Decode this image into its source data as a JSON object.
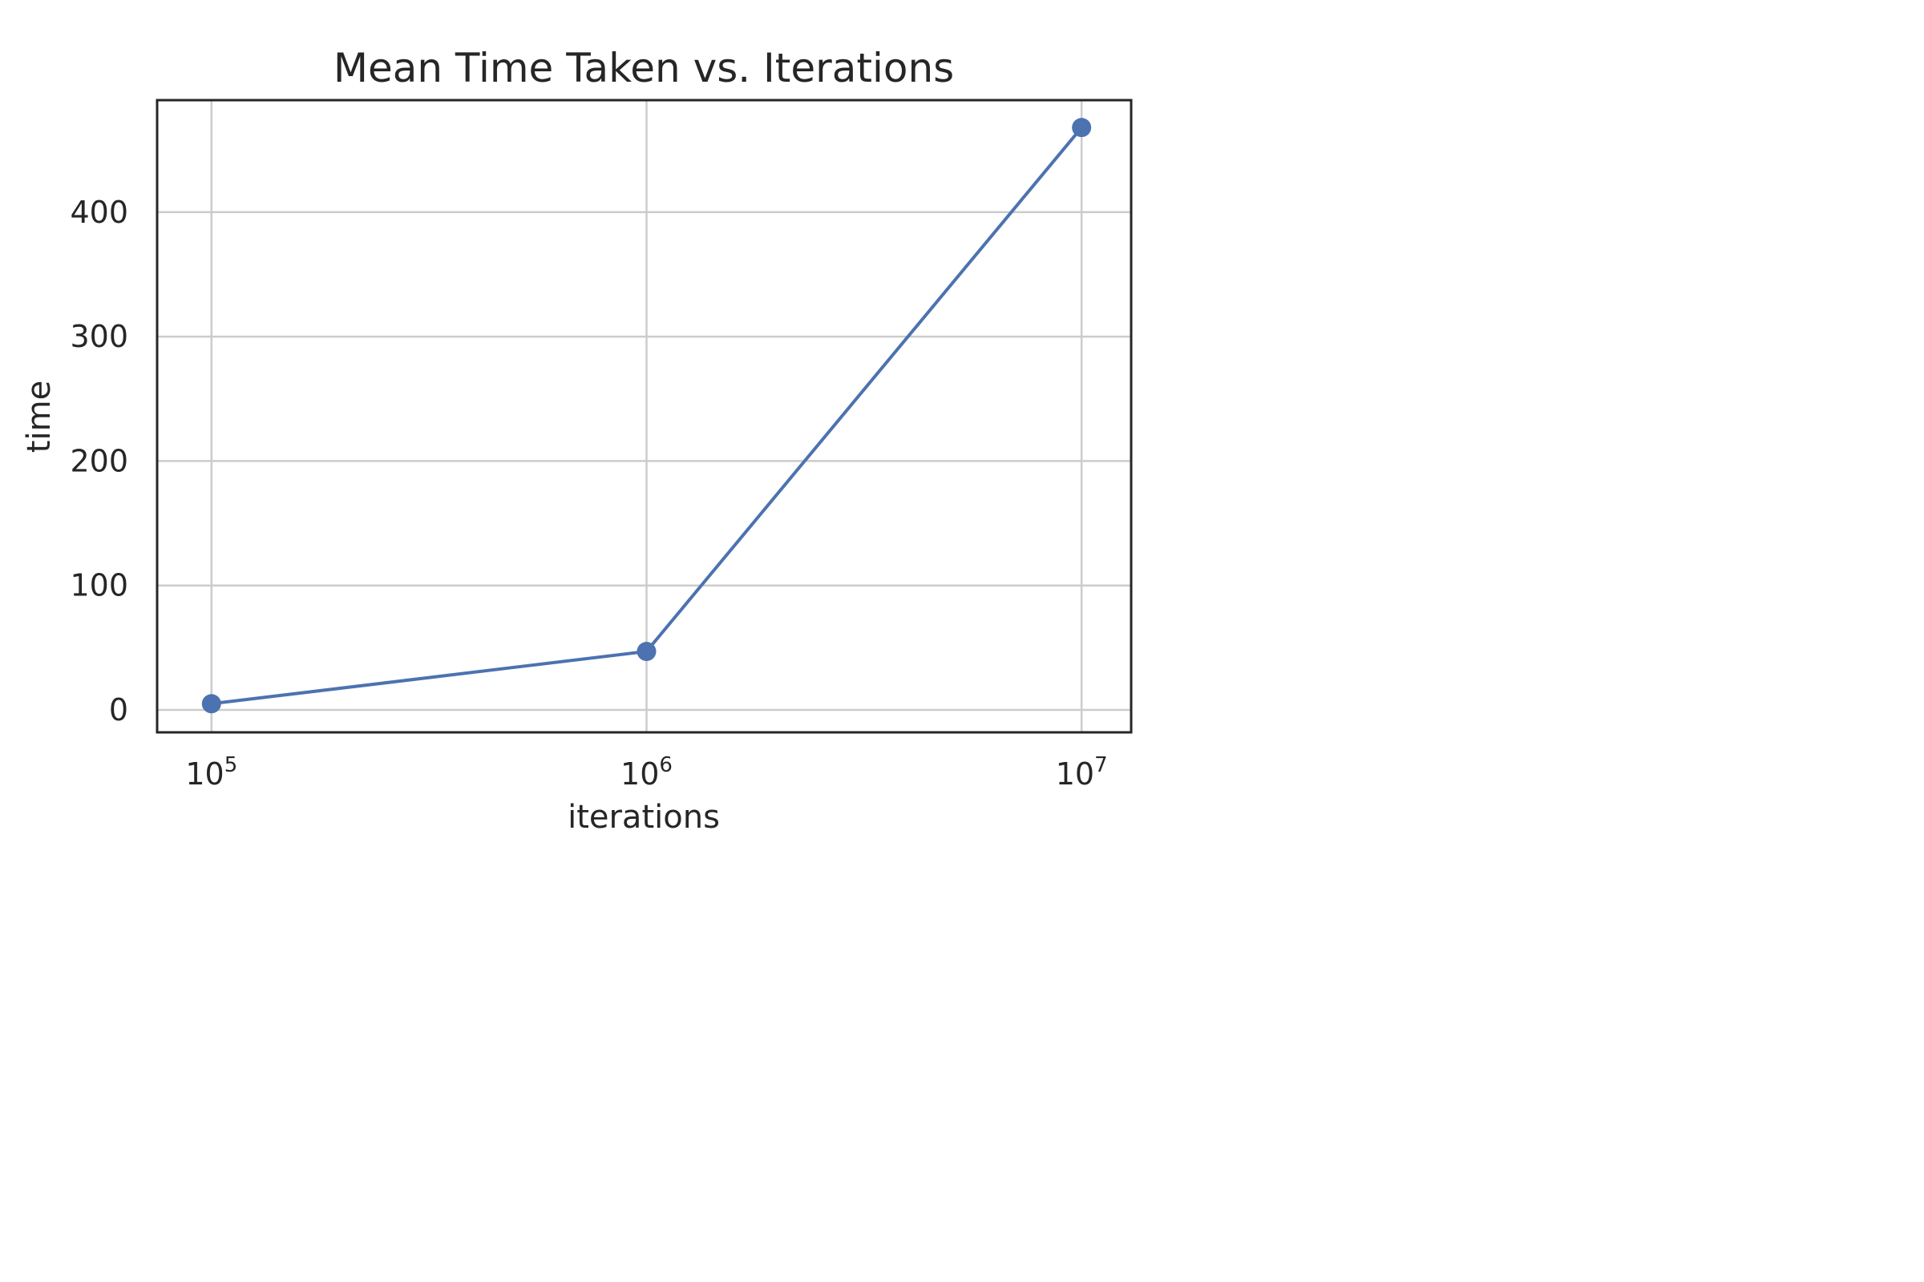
{
  "chart_data": {
    "type": "line",
    "title": "Mean Time Taken vs. Iterations",
    "xlabel": "iterations",
    "ylabel": "time",
    "xscale": "log",
    "x": [
      100000,
      1000000,
      10000000
    ],
    "series": [
      {
        "values": [
          5,
          47,
          468
        ],
        "color": "#4c72b0",
        "marker": "circle"
      }
    ],
    "xlim": [
      75000,
      13000000
    ],
    "ylim": [
      -18,
      490
    ],
    "xticks": [
      {
        "value": 100000,
        "base": "10",
        "exp": "5"
      },
      {
        "value": 1000000,
        "base": "10",
        "exp": "6"
      },
      {
        "value": 10000000,
        "base": "10",
        "exp": "7"
      }
    ],
    "yticks": [
      0,
      100,
      200,
      300,
      400
    ],
    "grid": true,
    "legend": "none"
  }
}
